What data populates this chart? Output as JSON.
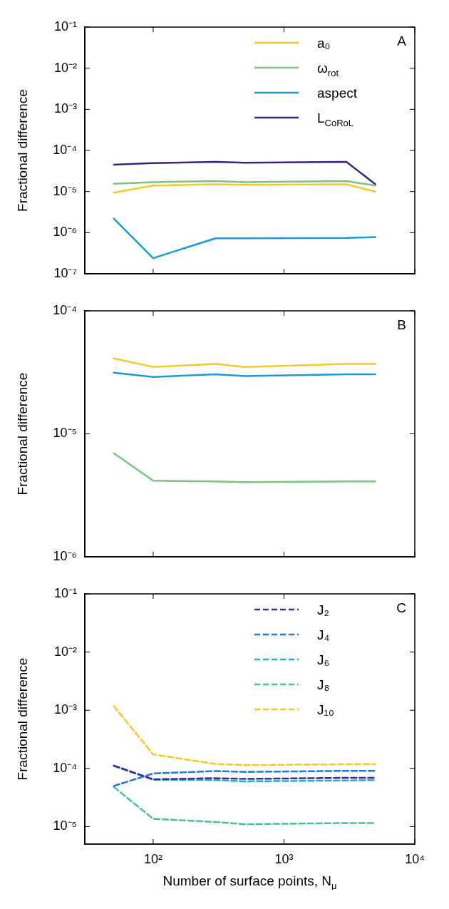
{
  "chart_data": [
    {
      "type": "line",
      "ylabel": "Fractional difference",
      "log": "xy",
      "legend": "top right",
      "tick_labels": "y",
      "annotations": [
        "A"
      ],
      "x": [
        50,
        100,
        300,
        500,
        3000,
        5000
      ],
      "xlim": [
        30,
        10000
      ],
      "ylim": [
        1e-07,
        0.1
      ],
      "xticks": [
        {
          "value": 100,
          "label": null
        },
        {
          "value": 1000,
          "label": null
        },
        {
          "value": 10000,
          "label": null
        }
      ],
      "yticks": [
        {
          "value": 1e-07,
          "label": "10⁻⁷"
        },
        {
          "value": 1e-06,
          "label": "10⁻⁶"
        },
        {
          "value": 1e-05,
          "label": "10⁻⁵"
        },
        {
          "value": 0.0001,
          "label": "10⁻⁴"
        },
        {
          "value": 0.001,
          "label": "10⁻³"
        },
        {
          "value": 0.01,
          "label": "10⁻²"
        },
        {
          "value": 0.1,
          "label": "10⁻¹"
        }
      ],
      "series": [
        {
          "name": "a₀",
          "color": "#f7c928",
          "values": [
            9.4e-06,
            1.4e-05,
            1.5e-05,
            1.45e-05,
            1.5e-05,
            1e-05
          ]
        },
        {
          "name": "ω$_{rot}$",
          "color": "#7bc47f",
          "values": [
            1.55e-05,
            1.7e-05,
            1.8e-05,
            1.7e-05,
            1.8e-05,
            1.4e-05
          ]
        },
        {
          "name": "aspect",
          "color": "#1b9ad6",
          "values": [
            2.2e-06,
            2.4e-07,
            7.3e-07,
            7.3e-07,
            7.4e-07,
            7.8e-07
          ]
        },
        {
          "name": "L$_{CoRoL}$",
          "color": "#35267f",
          "values": [
            4.5e-05,
            4.9e-05,
            5.3e-05,
            5e-05,
            5.3e-05,
            1.5e-05
          ]
        }
      ]
    },
    {
      "type": "line",
      "ylabel": "Fractional difference",
      "log": "xy",
      "tick_labels": "y",
      "annotations": [
        "B"
      ],
      "x": [
        50,
        100,
        300,
        500,
        3000,
        5000
      ],
      "xlim": [
        30,
        10000
      ],
      "ylim": [
        1e-06,
        0.0001
      ],
      "xticks": [
        {
          "value": 100,
          "label": null
        },
        {
          "value": 1000,
          "label": null
        },
        {
          "value": 10000,
          "label": null
        }
      ],
      "yticks": [
        {
          "value": 1e-06,
          "label": "10⁻⁶"
        },
        {
          "value": 1e-05,
          "label": "10⁻⁵"
        },
        {
          "value": 0.0001,
          "label": "10⁻⁴"
        }
      ],
      "series": [
        {
          "color": "#f7c928",
          "values": [
            4.1e-05,
            3.5e-05,
            3.7e-05,
            3.5e-05,
            3.7e-05,
            3.7e-05
          ]
        },
        {
          "color": "#1b9ad6",
          "values": [
            3.14e-05,
            2.9e-05,
            3.05e-05,
            2.95e-05,
            3.05e-05,
            3.05e-05
          ]
        },
        {
          "color": "#7bc47f",
          "values": [
            6.95e-06,
            4.16e-06,
            4.1e-06,
            4.05e-06,
            4.1e-06,
            4.1e-06
          ]
        }
      ]
    },
    {
      "type": "line",
      "ylabel": "Fractional difference",
      "xlabel": "Number of surface points, N$_{μ}$",
      "log": "xy",
      "legend": "top right",
      "line_style": "dashed",
      "annotations": [
        "C"
      ],
      "x": [
        50,
        100,
        300,
        500,
        3000,
        5000
      ],
      "xlim": [
        30,
        10000
      ],
      "ylim": [
        5e-06,
        0.1
      ],
      "xticks": [
        {
          "value": 100,
          "label": "10²"
        },
        {
          "value": 1000,
          "label": "10³"
        },
        {
          "value": 10000,
          "label": "10⁴"
        }
      ],
      "yticks": [
        {
          "value": 1e-05,
          "label": "10⁻⁵"
        },
        {
          "value": 0.0001,
          "label": "10⁻⁴"
        },
        {
          "value": 0.001,
          "label": "10⁻³"
        },
        {
          "value": 0.01,
          "label": "10⁻²"
        },
        {
          "value": 0.1,
          "label": "10⁻¹"
        }
      ],
      "series": [
        {
          "name": "J₂",
          "color": "#3a2b8c",
          "values": [
            0.000112,
            6.5e-05,
            6.8e-05,
            6.6e-05,
            6.9e-05,
            6.9e-05
          ]
        },
        {
          "name": "J₄",
          "color": "#1f78e0",
          "values": [
            5e-05,
            8.2e-05,
            9e-05,
            8.7e-05,
            9.1e-05,
            9.1e-05
          ]
        },
        {
          "name": "J₆",
          "color": "#22aed1",
          "values": [
            0.00011,
            6.4e-05,
            6.3e-05,
            6e-05,
            6.2e-05,
            6.3e-05
          ]
        },
        {
          "name": "J₈",
          "color": "#4cc08f",
          "values": [
            4.8e-05,
            1.36e-05,
            1.2e-05,
            1.1e-05,
            1.15e-05,
            1.15e-05
          ]
        },
        {
          "name": "J₁₀",
          "color": "#f7c928",
          "values": [
            0.00118,
            0.000174,
            0.000119,
            0.000114,
            0.000118,
            0.000119
          ]
        }
      ]
    }
  ]
}
